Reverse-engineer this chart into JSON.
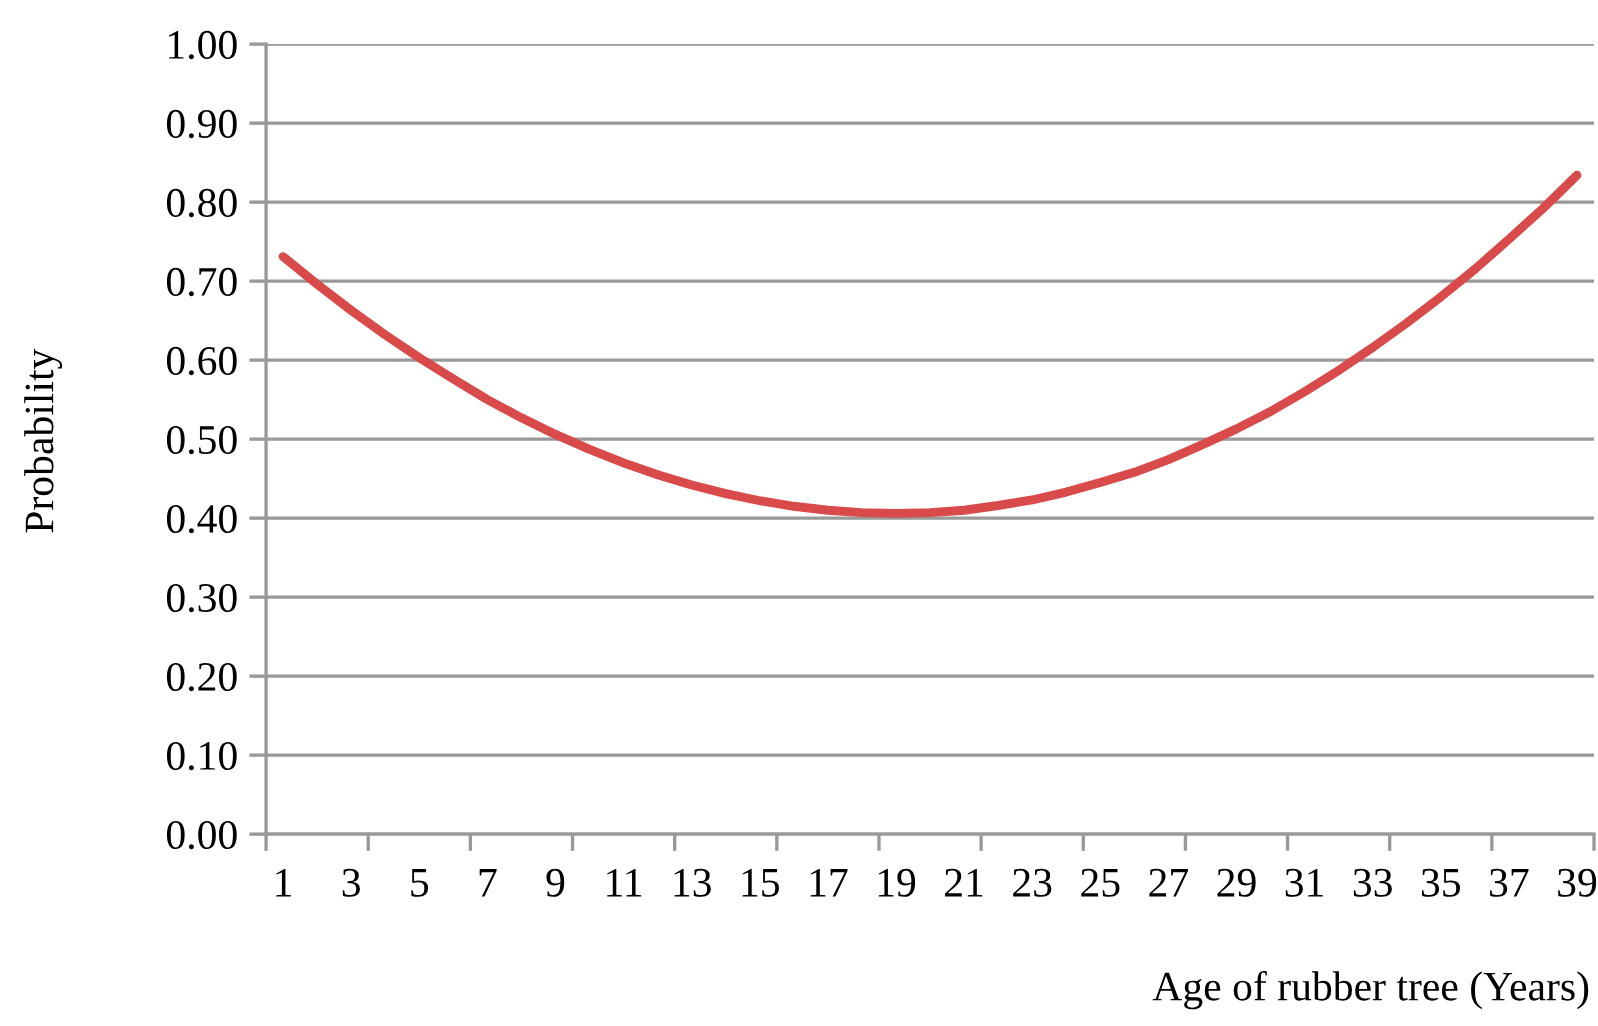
{
  "chart_data": {
    "type": "line",
    "xlabel": "Age of rubber tree (Years)",
    "ylabel": "Probability",
    "categories": [
      "1",
      null,
      "3",
      null,
      "5",
      null,
      "7",
      null,
      "9",
      null,
      "11",
      null,
      "13",
      null,
      "15",
      null,
      "17",
      null,
      "19",
      null,
      "21",
      null,
      "23",
      null,
      "25",
      null,
      "27",
      null,
      "29",
      null,
      "31",
      null,
      "33",
      null,
      "35",
      null,
      "37",
      null,
      "39"
    ],
    "series": [
      {
        "color": "#d94a4a",
        "values": [
          0.731,
          0.696,
          0.663,
          0.632,
          0.603,
          0.576,
          0.55,
          0.527,
          0.506,
          0.487,
          0.47,
          0.455,
          0.442,
          0.431,
          0.422,
          0.415,
          0.41,
          0.407,
          0.406,
          0.407,
          0.41,
          0.416,
          0.423,
          0.433,
          0.445,
          0.458,
          0.474,
          0.493,
          0.513,
          0.535,
          0.56,
          0.587,
          0.616,
          0.647,
          0.68,
          0.715,
          0.753,
          0.792,
          0.834
        ]
      }
    ],
    "ylim": [
      0,
      1
    ],
    "yticks": [
      {
        "value": 0,
        "label": "0.00"
      },
      {
        "value": 0.1,
        "label": "0.10"
      },
      {
        "value": 0.2,
        "label": "0.20"
      },
      {
        "value": 0.3,
        "label": "0.30"
      },
      {
        "value": 0.4,
        "label": "0.40"
      },
      {
        "value": 0.5,
        "label": "0.50"
      },
      {
        "value": 0.6,
        "label": "0.60"
      },
      {
        "value": 0.7,
        "label": "0.70"
      },
      {
        "value": 0.8,
        "label": "0.80"
      },
      {
        "value": 0.9,
        "label": "0.90"
      },
      {
        "value": 1,
        "label": "1.00"
      }
    ],
    "grid": "y",
    "marker": "none",
    "line_style": "solid"
  }
}
